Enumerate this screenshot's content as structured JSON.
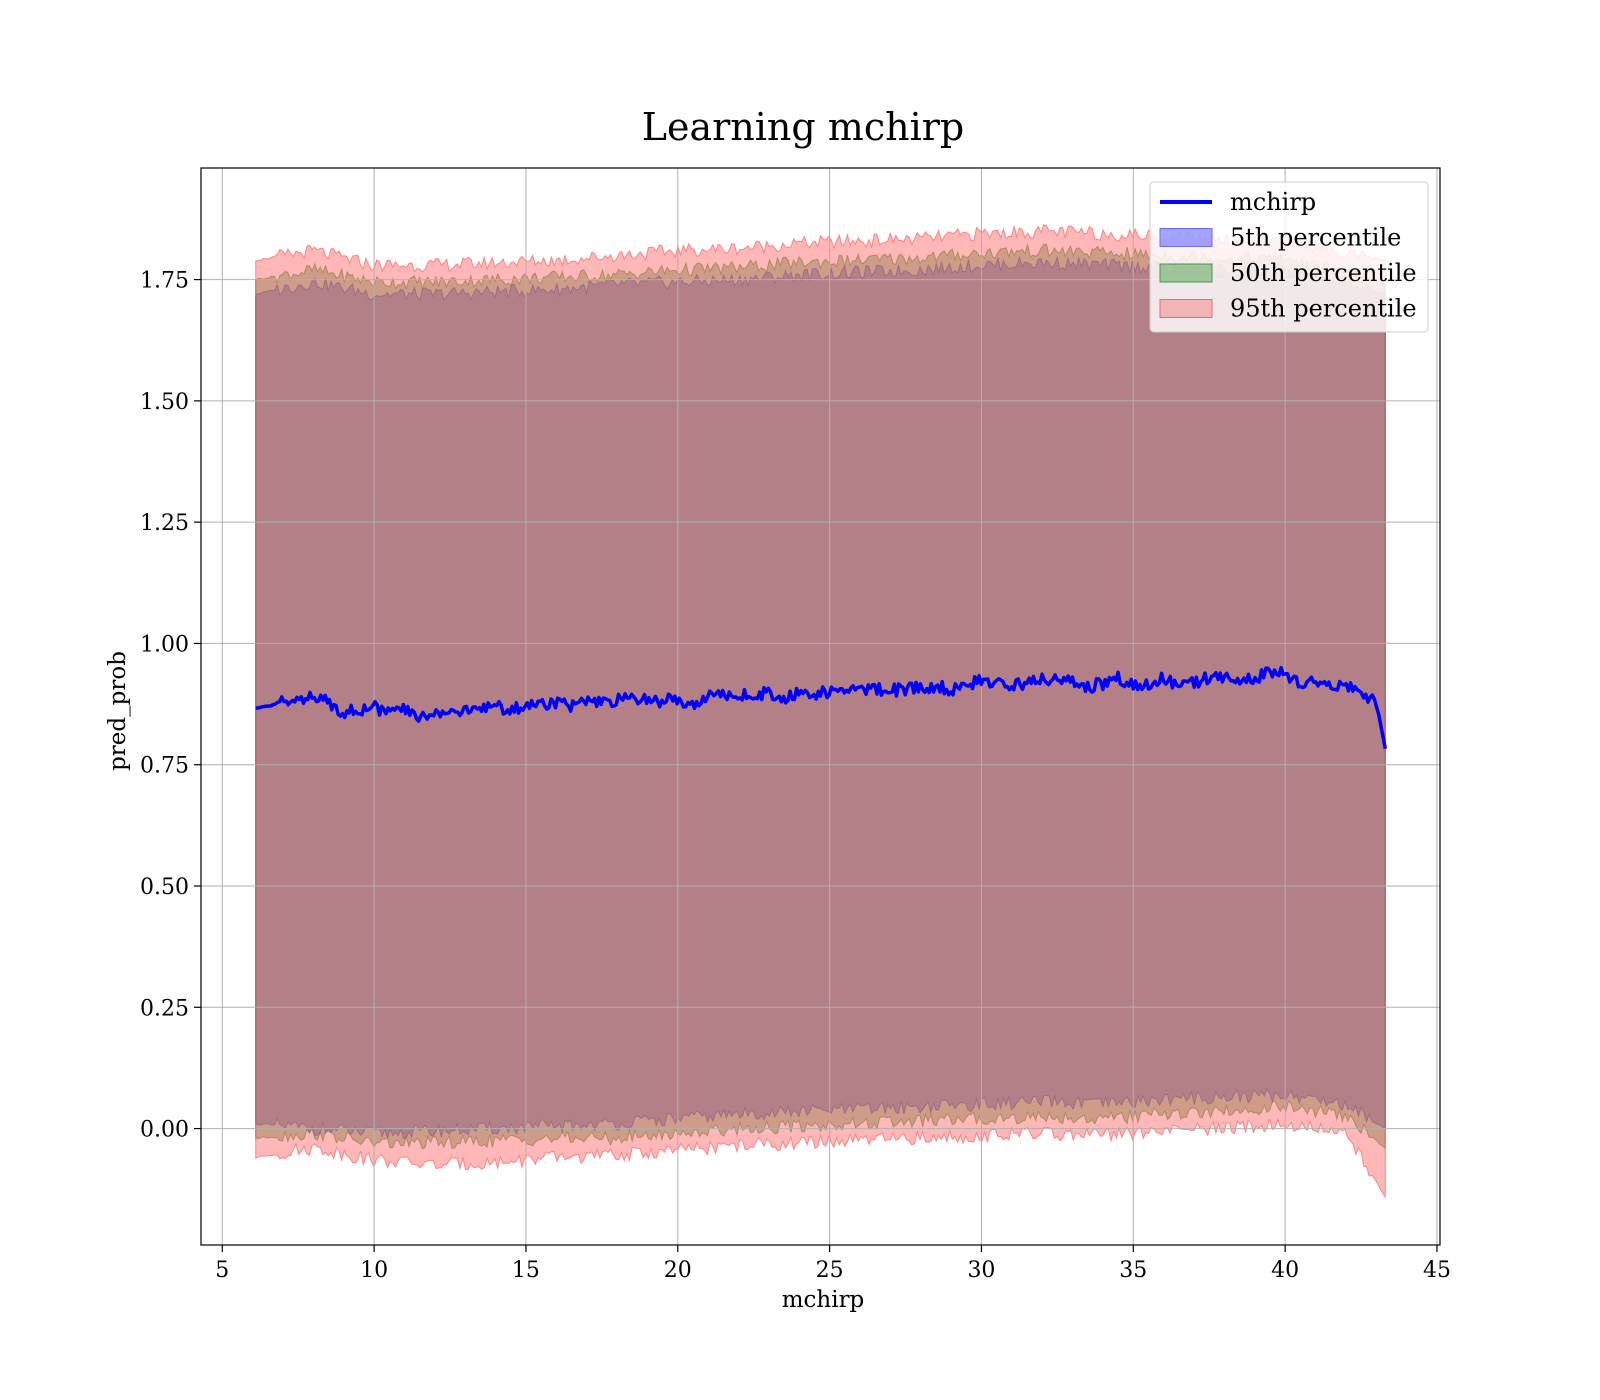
{
  "chart_data": {
    "type": "area",
    "title": "Learning mchirp",
    "xlabel": "mchirp",
    "ylabel": "pred_prob",
    "xlim": [
      4.3,
      45.1
    ],
    "ylim": [
      -0.24,
      1.98
    ],
    "xticks": [
      5,
      10,
      15,
      20,
      25,
      30,
      35,
      40,
      45
    ],
    "yticks": [
      0.0,
      0.25,
      0.5,
      0.75,
      1.0,
      1.25,
      1.5,
      1.75
    ],
    "ytick_labels": [
      "0.00",
      "0.25",
      "0.50",
      "0.75",
      "1.00",
      "1.25",
      "1.50",
      "1.75"
    ],
    "grid": true,
    "legend_position": "top-right",
    "legend": [
      {
        "label": "mchirp",
        "kind": "line",
        "color": "#0000ff"
      },
      {
        "label": "5th percentile",
        "kind": "patch",
        "color": "#5b5bff",
        "edge": "#6a6aff"
      },
      {
        "label": "50th percentile",
        "kind": "patch",
        "color": "#5aa55a",
        "edge": "#4d944d"
      },
      {
        "label": "95th percentile",
        "kind": "patch",
        "color": "#f08a8a",
        "edge": "#f06a6a"
      }
    ],
    "series": [
      {
        "name": "mchirp",
        "role": "line",
        "color": "#0000ff",
        "x": [
          6.1,
          6.6,
          7.0,
          7.5,
          8.0,
          8.5,
          9.0,
          9.5,
          10.0,
          10.5,
          11.0,
          11.5,
          12.0,
          12.5,
          13.0,
          13.5,
          14.0,
          14.5,
          15.0,
          15.5,
          16.0,
          16.5,
          17.0,
          17.5,
          18.0,
          18.5,
          19.0,
          19.5,
          20.0,
          20.5,
          21.0,
          21.5,
          22.0,
          22.5,
          23.0,
          23.5,
          24.0,
          24.5,
          25.0,
          25.5,
          26.0,
          26.5,
          27.0,
          27.5,
          28.0,
          28.5,
          29.0,
          29.5,
          30.0,
          30.5,
          31.0,
          31.5,
          32.0,
          32.5,
          33.0,
          33.5,
          34.0,
          34.5,
          35.0,
          35.5,
          36.0,
          36.5,
          37.0,
          37.5,
          38.0,
          38.5,
          39.0,
          39.5,
          40.0,
          40.5,
          41.0,
          41.5,
          42.0,
          42.5,
          43.0,
          43.3
        ],
        "values": [
          0.866,
          0.872,
          0.882,
          0.89,
          0.886,
          0.88,
          0.858,
          0.864,
          0.868,
          0.858,
          0.864,
          0.846,
          0.858,
          0.862,
          0.858,
          0.866,
          0.872,
          0.862,
          0.872,
          0.876,
          0.88,
          0.872,
          0.878,
          0.876,
          0.882,
          0.886,
          0.884,
          0.882,
          0.884,
          0.878,
          0.888,
          0.898,
          0.894,
          0.894,
          0.898,
          0.888,
          0.9,
          0.896,
          0.9,
          0.904,
          0.906,
          0.908,
          0.902,
          0.906,
          0.91,
          0.912,
          0.904,
          0.912,
          0.924,
          0.916,
          0.914,
          0.918,
          0.928,
          0.922,
          0.92,
          0.91,
          0.918,
          0.93,
          0.914,
          0.918,
          0.928,
          0.91,
          0.918,
          0.93,
          0.928,
          0.924,
          0.928,
          0.94,
          0.938,
          0.918,
          0.92,
          0.914,
          0.918,
          0.898,
          0.882,
          0.782
        ]
      },
      {
        "name": "5th percentile",
        "role": "band",
        "color": "#4040ff",
        "opacity": 0.35,
        "x": [
          6.1,
          8.0,
          10.0,
          12.0,
          14.0,
          16.0,
          18.0,
          20.0,
          22.0,
          24.0,
          26.0,
          28.0,
          30.0,
          32.0,
          34.0,
          36.0,
          38.0,
          40.0,
          42.0,
          43.3
        ],
        "lower": [
          0.01,
          0.0,
          -0.01,
          -0.005,
          0.0,
          0.005,
          0.01,
          0.02,
          0.03,
          0.035,
          0.04,
          0.045,
          0.05,
          0.055,
          0.05,
          0.06,
          0.065,
          0.07,
          0.05,
          0.0
        ],
        "upper": [
          1.72,
          1.745,
          1.72,
          1.72,
          1.725,
          1.73,
          1.74,
          1.745,
          1.75,
          1.76,
          1.765,
          1.77,
          1.78,
          1.785,
          1.78,
          1.775,
          1.77,
          1.77,
          1.74,
          1.72
        ]
      },
      {
        "name": "50th percentile",
        "role": "band",
        "color": "#2e8b2e",
        "opacity": 0.35,
        "x": [
          6.1,
          8.0,
          10.0,
          12.0,
          14.0,
          16.0,
          18.0,
          20.0,
          22.0,
          24.0,
          26.0,
          28.0,
          30.0,
          32.0,
          34.0,
          36.0,
          38.0,
          40.0,
          42.0,
          43.3
        ],
        "lower": [
          -0.02,
          -0.01,
          -0.03,
          -0.03,
          -0.025,
          -0.02,
          -0.02,
          -0.01,
          0.0,
          0.005,
          0.01,
          0.015,
          0.02,
          0.025,
          0.02,
          0.03,
          0.035,
          0.045,
          0.025,
          -0.04
        ],
        "upper": [
          1.75,
          1.77,
          1.745,
          1.745,
          1.75,
          1.755,
          1.76,
          1.77,
          1.775,
          1.785,
          1.79,
          1.795,
          1.805,
          1.81,
          1.805,
          1.8,
          1.795,
          1.795,
          1.76,
          1.74
        ]
      },
      {
        "name": "95th percentile",
        "role": "band",
        "color": "#ff3030",
        "opacity": 0.35,
        "x": [
          6.1,
          8.0,
          10.0,
          12.0,
          14.0,
          16.0,
          18.0,
          20.0,
          22.0,
          24.0,
          26.0,
          28.0,
          30.0,
          32.0,
          34.0,
          36.0,
          38.0,
          40.0,
          42.0,
          43.3
        ],
        "lower": [
          -0.06,
          -0.04,
          -0.065,
          -0.075,
          -0.07,
          -0.06,
          -0.055,
          -0.045,
          -0.035,
          -0.03,
          -0.025,
          -0.02,
          -0.015,
          -0.01,
          -0.015,
          -0.005,
          0.0,
          0.01,
          -0.01,
          -0.14
        ],
        "upper": [
          1.79,
          1.81,
          1.78,
          1.78,
          1.785,
          1.79,
          1.8,
          1.81,
          1.815,
          1.825,
          1.83,
          1.835,
          1.845,
          1.85,
          1.845,
          1.84,
          1.835,
          1.835,
          1.8,
          1.79
        ]
      }
    ]
  }
}
